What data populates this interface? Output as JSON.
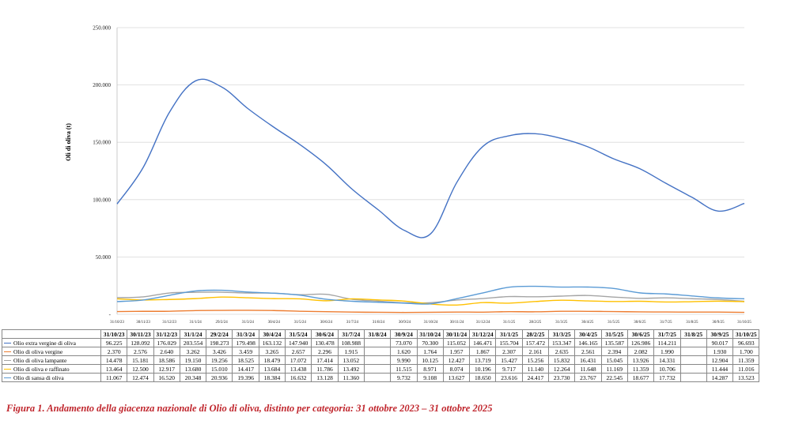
{
  "chart_data": {
    "type": "line",
    "ylabel": "Oli di oliva (t)",
    "ylim": [
      0,
      250000
    ],
    "yticks": [
      "-",
      "50.000",
      "100.000",
      "150.000",
      "200.000",
      "250.000"
    ],
    "x_axis_labels": [
      "31/10/23",
      "30/11/23",
      "31/12/23",
      "31/1/24",
      "29/2/24",
      "31/3/24",
      "30/4/24",
      "31/5/24",
      "30/6/24",
      "31/7/24",
      "31/8/24",
      "30/9/24",
      "31/10/24",
      "30/11/24",
      "31/12/24",
      "31/1/25",
      "28/2/25",
      "31/3/25",
      "30/4/25",
      "31/5/25",
      "30/6/25",
      "31/7/25",
      "31/8/25",
      "30/9/25",
      "31/10/25"
    ],
    "table_header": [
      "31/10/23",
      "30/11/23",
      "31/12/23",
      "31/1/24",
      "29/2/24",
      "31/3/24",
      "30/4/24",
      "31/5/24",
      "30/6/24",
      "31/7/24",
      "31/8/24",
      "30/9/24",
      "31/10/24",
      "30/11/24",
      "31/12/24",
      "31/1/25",
      "28/2/25",
      "31/3/25",
      "30/4/25",
      "31/5/25",
      "30/6/25",
      "31/7/25",
      "31/8/25",
      "30/9/25",
      "31/10/25"
    ],
    "series": [
      {
        "name": "Olio extra vergine di oliva",
        "color": "#4472c4",
        "values": [
          96225,
          128092,
          176029,
          203554,
          198273,
          179498,
          163132,
          147940,
          130478,
          108988,
          91000,
          73070,
          70300,
          115052,
          146471,
          155704,
          157472,
          153347,
          146165,
          135587,
          126986,
          114211,
          102000,
          90017,
          96693
        ],
        "labels": [
          "96.225",
          "128.092",
          "176.029",
          "203.554",
          "198.273",
          "179.498",
          "163.132",
          "147.940",
          "130.478",
          "108.988",
          "",
          "73.070",
          "70.300",
          "115.052",
          "146.471",
          "155.704",
          "157.472",
          "153.347",
          "146.165",
          "135.587",
          "126.986",
          "114.211",
          "",
          "90.017",
          "96.693"
        ]
      },
      {
        "name": "Olio di oliva vergine",
        "color": "#ed7d31",
        "values": [
          2370,
          2576,
          2640,
          3262,
          3426,
          3459,
          3265,
          2657,
          2296,
          1915,
          1750,
          1620,
          1764,
          1957,
          1867,
          2307,
          2161,
          2635,
          2561,
          2394,
          2082,
          1990,
          1930,
          1930,
          1700
        ],
        "labels": [
          "2.370",
          "2.576",
          "2.640",
          "3.262",
          "3.426",
          "3.459",
          "3.265",
          "2.657",
          "2.296",
          "1.915",
          "",
          "1.620",
          "1.764",
          "1.957",
          "1.867",
          "2.307",
          "2.161",
          "2.635",
          "2.561",
          "2.394",
          "2.082",
          "1.990",
          "",
          "1.930",
          "1.700"
        ]
      },
      {
        "name": "Olio di oliva lampante",
        "color": "#a5a5a5",
        "values": [
          14478,
          15181,
          18586,
          19150,
          19256,
          18525,
          18479,
          17072,
          17414,
          13052,
          11500,
          9990,
          10125,
          12427,
          13719,
          15427,
          15256,
          15832,
          16431,
          15045,
          13926,
          14331,
          13600,
          12904,
          11359
        ],
        "labels": [
          "14.478",
          "15.181",
          "18.586",
          "19.150",
          "19.256",
          "18.525",
          "18.479",
          "17.072",
          "17.414",
          "13.052",
          "",
          "9.990",
          "10.125",
          "12.427",
          "13.719",
          "15.427",
          "15.256",
          "15.832",
          "16.431",
          "15.045",
          "13.926",
          "14.331",
          "",
          "12.904",
          "11.359"
        ]
      },
      {
        "name": "Olio di oliva e raffinato",
        "color": "#ffc000",
        "values": [
          13464,
          12500,
          12917,
          13680,
          15010,
          14417,
          13684,
          13438,
          11786,
          13492,
          12500,
          11515,
          8971,
          8074,
          10196,
          9717,
          11140,
          12264,
          11648,
          11169,
          11359,
          10706,
          11000,
          11444,
          11016
        ],
        "labels": [
          "13.464",
          "12.500",
          "12.917",
          "13.680",
          "15.010",
          "14.417",
          "13.684",
          "13.438",
          "11.786",
          "13.492",
          "",
          "11.515",
          "8.971",
          "8.074",
          "10.196",
          "9.717",
          "11.140",
          "12.264",
          "11.648",
          "11.169",
          "11.359",
          "10.706",
          "",
          "11.444",
          "11.016"
        ]
      },
      {
        "name": "Olio di sansa di oliva",
        "color": "#5b9bd5",
        "values": [
          11067,
          12474,
          16520,
          20348,
          20936,
          19396,
          18384,
          16632,
          13128,
          11360,
          10500,
          9732,
          9108,
          13627,
          18650,
          23616,
          24417,
          23730,
          23767,
          22545,
          18677,
          17732,
          16000,
          14287,
          13523
        ],
        "labels": [
          "11.067",
          "12.474",
          "16.520",
          "20.348",
          "20.936",
          "19.396",
          "18.384",
          "16.632",
          "13.128",
          "11.360",
          "",
          "9.732",
          "9.108",
          "13.627",
          "18.650",
          "23.616",
          "24.417",
          "23.730",
          "23.767",
          "22.545",
          "18.677",
          "17.732",
          "",
          "14.287",
          "13.523"
        ]
      }
    ]
  },
  "caption": "Figura 1. Andamento della giacenza nazionale di Olio di oliva, distinto per categoria: 31 ottobre 2023 – 31 ottobre 2025"
}
